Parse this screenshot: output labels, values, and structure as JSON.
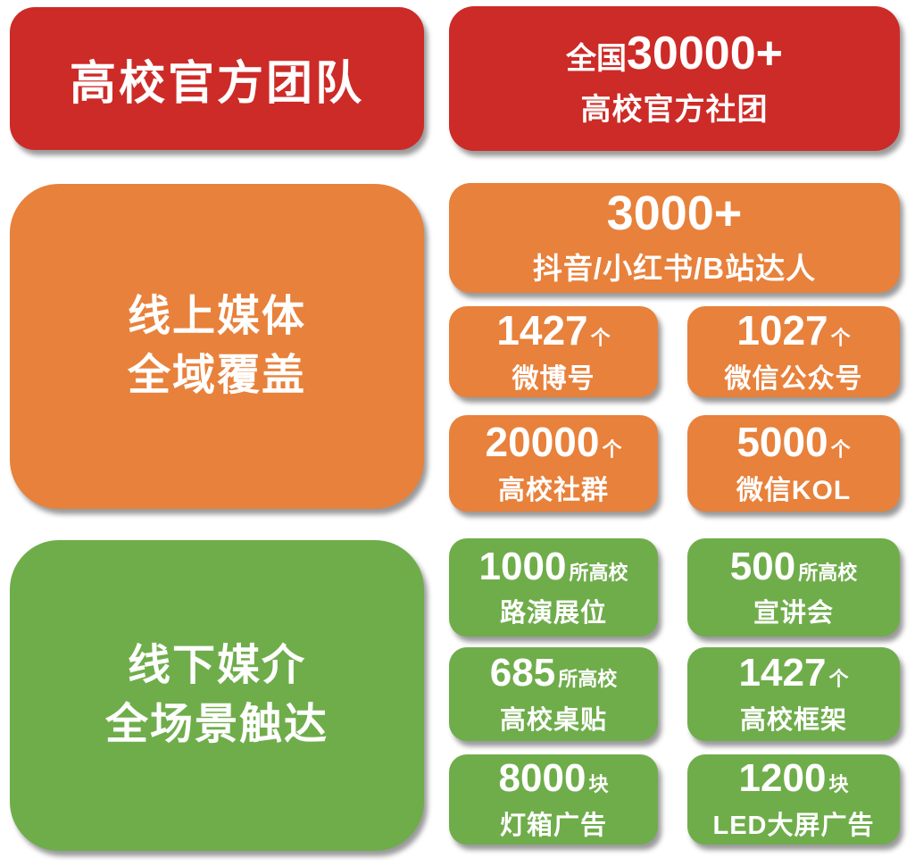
{
  "colors": {
    "red": "#cd2b27",
    "orange": "#e8813b",
    "green": "#6fad4b",
    "text": "#ffffff",
    "background": "#ffffff"
  },
  "official": {
    "title": "高校官方团队",
    "stat": {
      "prefix": "全国",
      "number": "30000+",
      "label": "高校官方社团"
    }
  },
  "online": {
    "title": "线上媒体\n全域覆盖",
    "hero": {
      "number": "3000+",
      "label": "抖音/小红书/B站达人"
    },
    "stats": [
      {
        "number": "1427",
        "unit": "个",
        "label": "微博号"
      },
      {
        "number": "1027",
        "unit": "个",
        "label": "微信公众号"
      },
      {
        "number": "20000",
        "unit": "个",
        "label": "高校社群"
      },
      {
        "number": "5000",
        "unit": "个",
        "label": "微信KOL"
      }
    ]
  },
  "offline": {
    "title": "线下媒介\n全场景触达",
    "stats": [
      {
        "number": "1000",
        "unit": "所高校",
        "label": "路演展位"
      },
      {
        "number": "500",
        "unit": "所高校",
        "label": "宣讲会"
      },
      {
        "number": "685",
        "unit": "所高校",
        "label": "高校桌贴"
      },
      {
        "number": "1427",
        "unit": "个",
        "label": "高校框架"
      },
      {
        "number": "8000",
        "unit": "块",
        "label": "灯箱广告"
      },
      {
        "number": "1200",
        "unit": "块",
        "label": "LED大屏广告"
      }
    ]
  }
}
